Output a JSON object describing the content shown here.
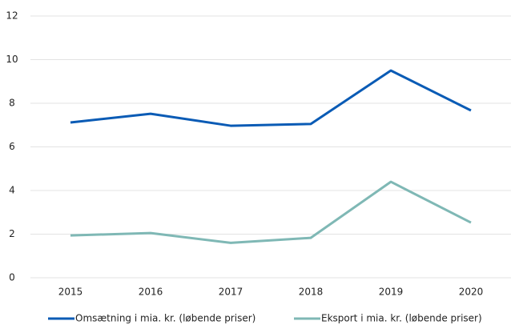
{
  "chart_data": {
    "type": "line",
    "categories": [
      "2015",
      "2016",
      "2017",
      "2018",
      "2019",
      "2020"
    ],
    "series": [
      {
        "name": "Omsætning i mia. kr. (løbende priser)",
        "color": "#0a5bb5",
        "values": [
          7.12,
          7.52,
          6.97,
          7.05,
          9.5,
          7.67
        ]
      },
      {
        "name": "Eksport i mia. kr. (løbende priser)",
        "color": "#7fb8b5",
        "values": [
          1.94,
          2.05,
          1.6,
          1.83,
          4.4,
          2.53
        ]
      }
    ],
    "ylim": [
      0,
      12
    ],
    "yticks": [
      0,
      2,
      4,
      6,
      8,
      10,
      12
    ],
    "grid": true,
    "legend": "bottom"
  }
}
